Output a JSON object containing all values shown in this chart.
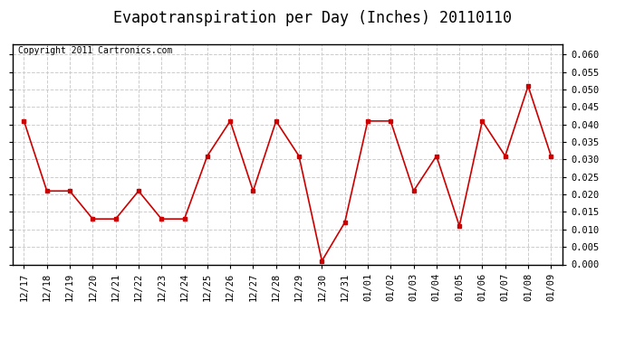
{
  "title": "Evapotranspiration per Day (Inches) 20110110",
  "copyright": "Copyright 2011 Cartronics.com",
  "line_color": "#cc0000",
  "marker": "s",
  "marker_size": 3,
  "background_color": "#ffffff",
  "grid_color": "#cccccc",
  "labels": [
    "12/17",
    "12/18",
    "12/19",
    "12/20",
    "12/21",
    "12/22",
    "12/23",
    "12/24",
    "12/25",
    "12/26",
    "12/27",
    "12/28",
    "12/29",
    "12/30",
    "12/31",
    "01/01",
    "01/02",
    "01/03",
    "01/04",
    "01/05",
    "01/06",
    "01/07",
    "01/08",
    "01/09"
  ],
  "values": [
    0.041,
    0.021,
    0.021,
    0.013,
    0.013,
    0.021,
    0.013,
    0.013,
    0.031,
    0.041,
    0.021,
    0.041,
    0.031,
    0.001,
    0.012,
    0.041,
    0.041,
    0.021,
    0.031,
    0.011,
    0.041,
    0.031,
    0.051,
    0.031
  ],
  "ylim": [
    0.0,
    0.063
  ],
  "yticks": [
    0.0,
    0.005,
    0.01,
    0.015,
    0.02,
    0.025,
    0.03,
    0.035,
    0.04,
    0.045,
    0.05,
    0.055,
    0.06
  ],
  "title_fontsize": 12,
  "copyright_fontsize": 7,
  "tick_fontsize": 7.5
}
